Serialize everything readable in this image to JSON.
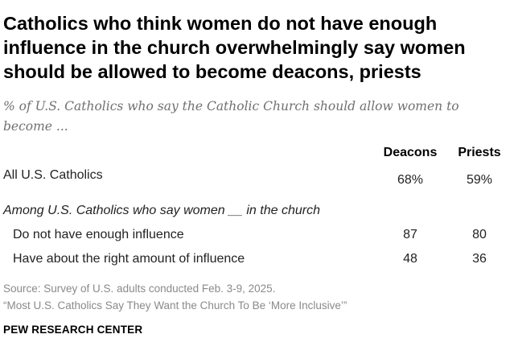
{
  "colors": {
    "title": "#000000",
    "subtitle": "#707070",
    "body_text": "#222222",
    "source_text": "#8a8a8a"
  },
  "title": "Catholics who think women do not have enough influence in the church overwhelmingly say women should be allowed to become deacons, priests",
  "subtitle": "% of U.S. Catholics who say the Catholic Church should allow women to become ...",
  "chart_data": {
    "type": "table",
    "columns": [
      "Deacons",
      "Priests"
    ],
    "rows": [
      {
        "label": "All U.S. Catholics",
        "values": [
          "68%",
          "59%"
        ]
      },
      {
        "label": "Do not have enough influence",
        "values": [
          "87",
          "80"
        ]
      },
      {
        "label": "Have about the right amount of influence",
        "values": [
          "48",
          "36"
        ]
      }
    ],
    "section_label": "Among U.S. Catholics who say women __ in the church"
  },
  "source": {
    "line1": "Source: Survey of U.S. adults conducted Feb. 3-9, 2025.",
    "line2": "“Most U.S. Catholics Say They Want the Church To Be ‘More Inclusive’”"
  },
  "brand": "PEW RESEARCH CENTER"
}
